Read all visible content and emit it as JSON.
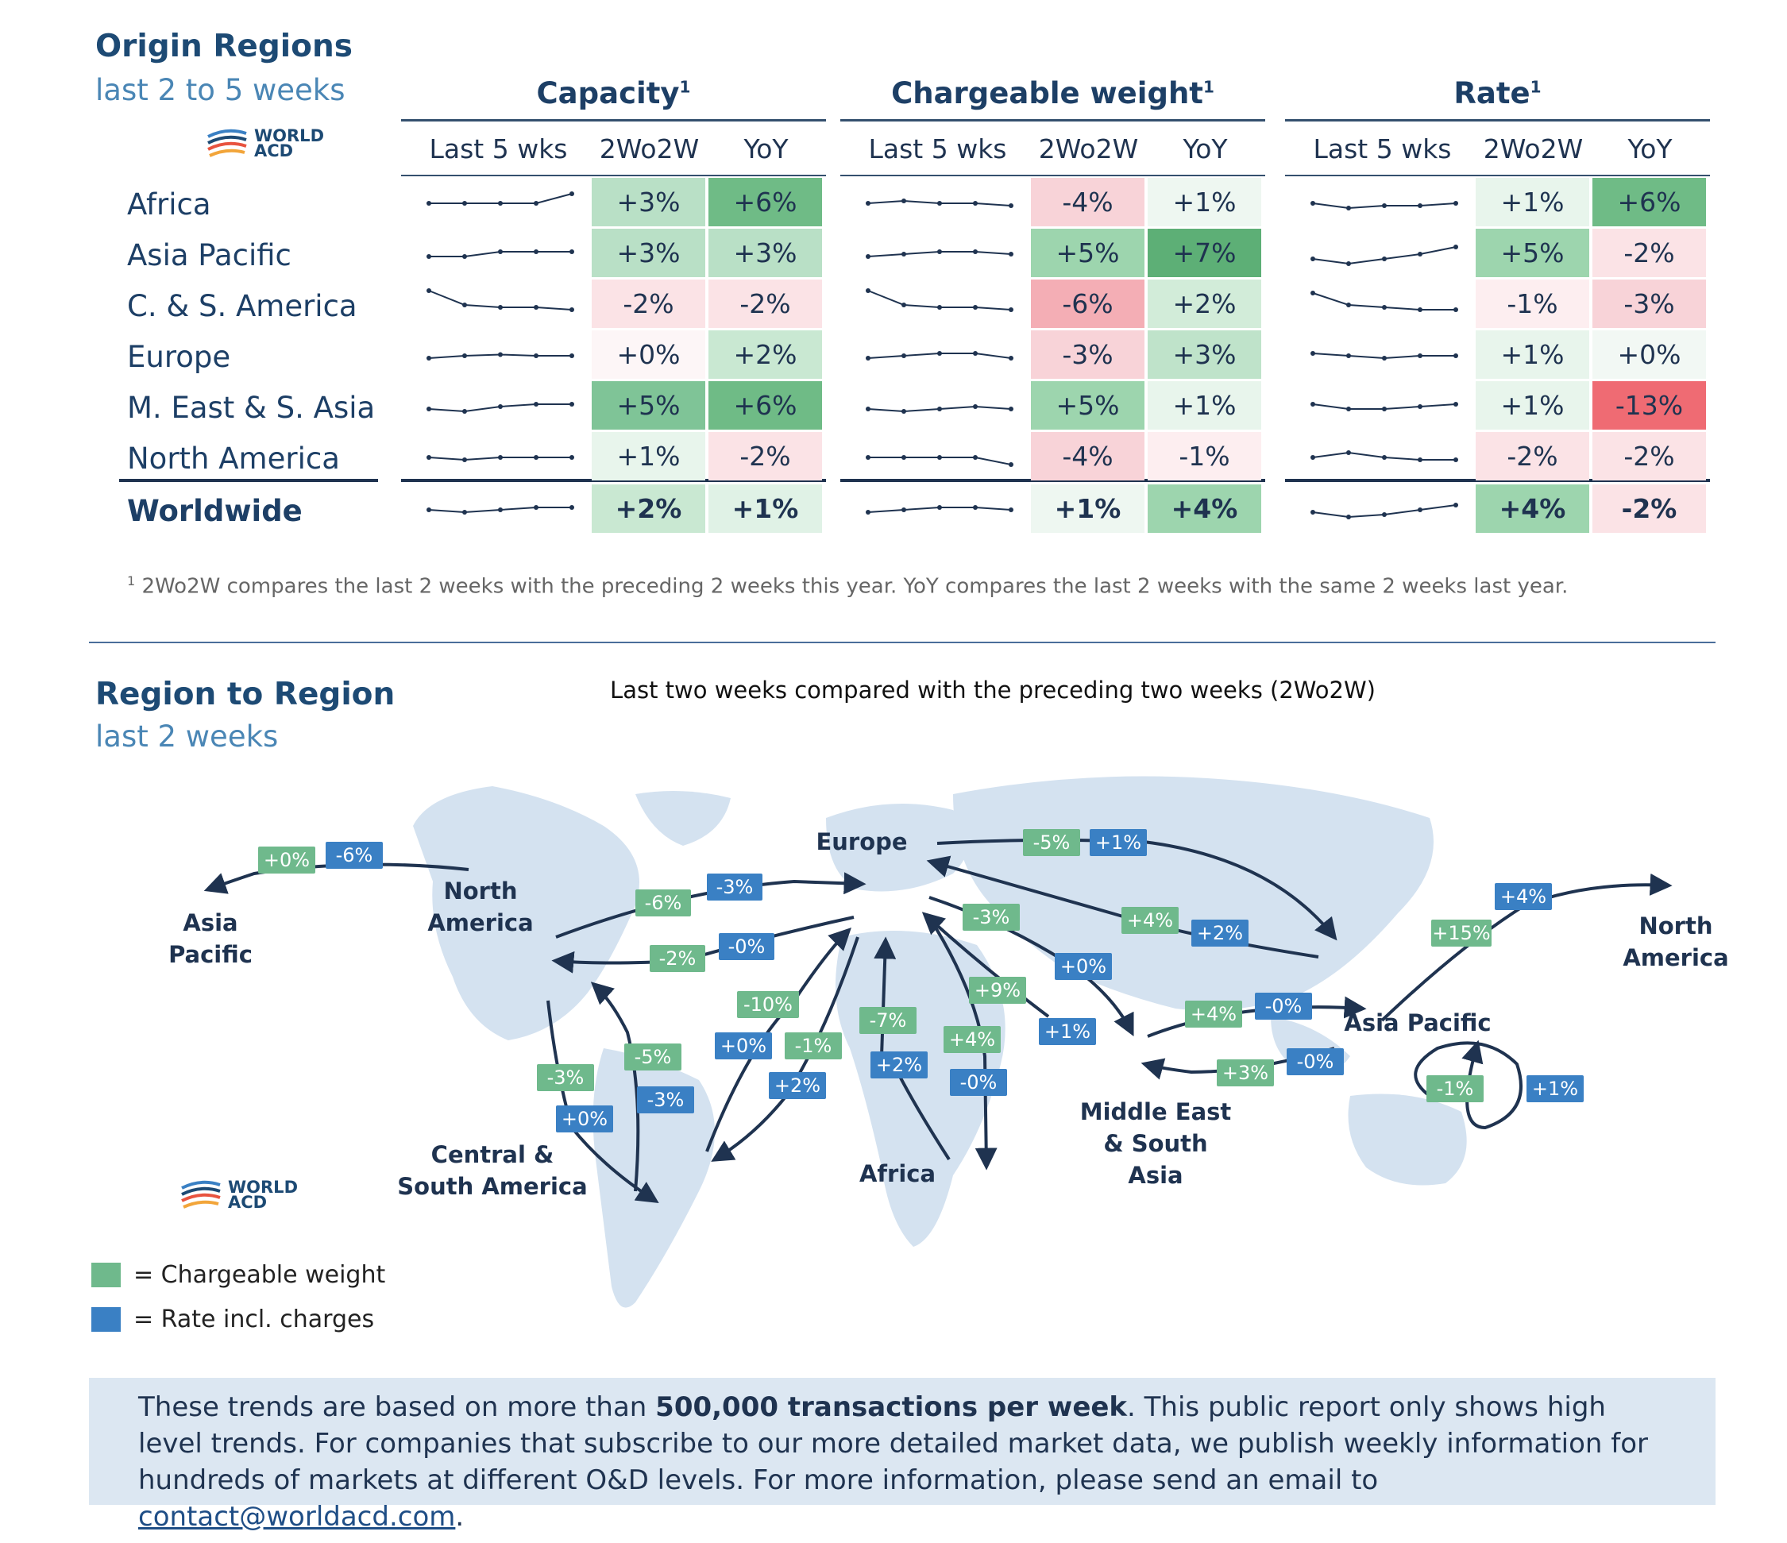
{
  "origin": {
    "title": "Origin Regions",
    "subtitle": "last 2 to 5 weeks",
    "logo_text": "WORLD ACD",
    "groups": [
      {
        "title": "Capacity",
        "sup": "1"
      },
      {
        "title": "Chargeable weight",
        "sup": "1"
      },
      {
        "title": "Rate",
        "sup": "1"
      }
    ],
    "col_headers": [
      "Last 5 wks",
      "2Wo2W",
      "YoY"
    ],
    "rows": [
      {
        "label": "Africa",
        "values": [
          "+3%",
          "+6%",
          "-4%",
          "+1%",
          "+1%",
          "+6%"
        ]
      },
      {
        "label": "Asia Pacific",
        "values": [
          "+3%",
          "+3%",
          "+5%",
          "+7%",
          "+5%",
          "-2%"
        ]
      },
      {
        "label": "C. & S. America",
        "values": [
          "-2%",
          "-2%",
          "-6%",
          "+2%",
          "-1%",
          "-3%"
        ]
      },
      {
        "label": "Europe",
        "values": [
          "+0%",
          "+2%",
          "-3%",
          "+3%",
          "+1%",
          "+0%"
        ]
      },
      {
        "label": "M. East & S. Asia",
        "values": [
          "+5%",
          "+6%",
          "+5%",
          "+1%",
          "+1%",
          "-13%"
        ]
      },
      {
        "label": "North America",
        "values": [
          "+1%",
          "-2%",
          "-4%",
          "-1%",
          "-2%",
          "-2%"
        ]
      },
      {
        "label": "Worldwide",
        "values": [
          "+2%",
          "+1%",
          "+1%",
          "+4%",
          "+4%",
          "-2%"
        ]
      }
    ],
    "cell_colors": [
      [
        "#b9e0c6",
        "#6fbb86",
        "#f8d3d8",
        "#eef7f1",
        "#e8f5ec",
        "#6fbb86"
      ],
      [
        "#b9e0c6",
        "#b9e0c6",
        "#9dd5ae",
        "#5daf76",
        "#9dd5ae",
        "#fbe3e6"
      ],
      [
        "#fbe3e6",
        "#fbe3e6",
        "#f4aeb5",
        "#d2ecd9",
        "#fdeef0",
        "#f8d3d8"
      ],
      [
        "#fdf6f7",
        "#c9e8d2",
        "#f8d3d8",
        "#bfe3ca",
        "#e8f5ec",
        "#f2f8f4"
      ],
      [
        "#7fc497",
        "#6fbb86",
        "#9dd5ae",
        "#e8f5ec",
        "#e8f5ec",
        "#ef6b73"
      ],
      [
        "#e8f5ec",
        "#fbe3e6",
        "#f8d3d8",
        "#fdeef0",
        "#fbe3e6",
        "#fbe3e6"
      ],
      [
        "#c9e8d2",
        "#e0f2e6",
        "#eef7f1",
        "#9dd5ae",
        "#9dd5ae",
        "#fbe3e6"
      ]
    ],
    "sparklines": [
      [
        [
          0,
          0,
          0,
          0,
          4
        ],
        [
          0,
          1,
          0,
          0,
          -1
        ],
        [
          0,
          -2,
          -1,
          -1,
          0
        ]
      ],
      [
        [
          -1,
          -1,
          1,
          1,
          1
        ],
        [
          -1,
          0,
          1,
          1,
          0
        ],
        [
          -2,
          -4,
          -2,
          0,
          3
        ]
      ],
      [
        [
          6,
          0,
          -1,
          -1,
          -2
        ],
        [
          6,
          0,
          -1,
          -1,
          -2
        ],
        [
          5,
          0,
          -1,
          -2,
          -2
        ]
      ],
      [
        [
          -1,
          0,
          0.5,
          0,
          0
        ],
        [
          -1,
          0,
          1,
          1,
          -1
        ],
        [
          1,
          0,
          -1,
          0,
          0
        ]
      ],
      [
        [
          -1,
          -2,
          0,
          1,
          1
        ],
        [
          -1,
          -2,
          -1,
          0,
          -1
        ],
        [
          1,
          -1,
          -1,
          0,
          1
        ]
      ],
      [
        [
          0,
          -1,
          0,
          0,
          0
        ],
        [
          0,
          0,
          0,
          0,
          -3
        ],
        [
          0,
          2,
          0,
          -1,
          -1
        ]
      ],
      [
        [
          0,
          -1,
          0,
          1,
          1
        ],
        [
          -1,
          0,
          1,
          1,
          0
        ],
        [
          -1,
          -3,
          -2,
          0,
          2
        ]
      ]
    ],
    "footnote_sup": "1",
    "footnote": "2Wo2W compares the last 2 weeks with the preceding 2 weeks this year. YoY compares the last 2 weeks with the same 2 weeks last year."
  },
  "region": {
    "title": "Region to Region",
    "subtitle": "last 2 weeks",
    "caption": "Last two weeks compared with the preceding two weeks (2Wo2W)",
    "logo_text": "WORLD ACD",
    "labels": [
      "Asia Pacific",
      "North America",
      "Europe",
      "North America",
      "Asia Pacific",
      "Central & South America",
      "Africa",
      "Middle East & South Asia"
    ],
    "tags": [
      {
        "t": "+0%",
        "k": "g"
      },
      {
        "t": "-6%",
        "k": "b"
      },
      {
        "t": "-6%",
        "k": "g"
      },
      {
        "t": "-3%",
        "k": "b"
      },
      {
        "t": "-2%",
        "k": "g"
      },
      {
        "t": "-0%",
        "k": "b"
      },
      {
        "t": "-5%",
        "k": "g"
      },
      {
        "t": "+1%",
        "k": "b"
      },
      {
        "t": "-3%",
        "k": "g"
      },
      {
        "t": "+0%",
        "k": "b"
      },
      {
        "t": "+4%",
        "k": "g"
      },
      {
        "t": "+2%",
        "k": "b"
      },
      {
        "t": "+9%",
        "k": "g"
      },
      {
        "t": "+1%",
        "k": "b"
      },
      {
        "t": "-10%",
        "k": "g"
      },
      {
        "t": "+0%",
        "k": "b"
      },
      {
        "t": "-1%",
        "k": "g"
      },
      {
        "t": "+2%",
        "k": "b"
      },
      {
        "t": "-7%",
        "k": "g"
      },
      {
        "t": "+2%",
        "k": "b"
      },
      {
        "t": "+4%",
        "k": "g"
      },
      {
        "t": "-0%",
        "k": "b"
      },
      {
        "t": "-3%",
        "k": "g"
      },
      {
        "t": "+0%",
        "k": "b"
      },
      {
        "t": "-5%",
        "k": "g"
      },
      {
        "t": "-3%",
        "k": "b"
      },
      {
        "t": "+4%",
        "k": "g"
      },
      {
        "t": "-0%",
        "k": "b"
      },
      {
        "t": "+3%",
        "k": "g"
      },
      {
        "t": "-0%",
        "k": "b"
      },
      {
        "t": "+15%",
        "k": "g"
      },
      {
        "t": "+4%",
        "k": "b"
      },
      {
        "t": "-1%",
        "k": "g"
      },
      {
        "t": "+1%",
        "k": "b"
      }
    ],
    "legend": [
      {
        "label": "= Chargeable weight",
        "color": "#6fb98c"
      },
      {
        "label": "= Rate incl. charges",
        "color": "#3a80c4"
      }
    ]
  },
  "info": {
    "part1": "These trends are based on more than ",
    "bold": "500,000 transactions per week",
    "part2": ". This public report only shows high level trends. For companies that subscribe to our more detailed market data, we publish weekly information for hundreds of markets at different O&D levels. For more information, please send an email to ",
    "email": "contact@worldacd.com",
    "part3": "."
  }
}
